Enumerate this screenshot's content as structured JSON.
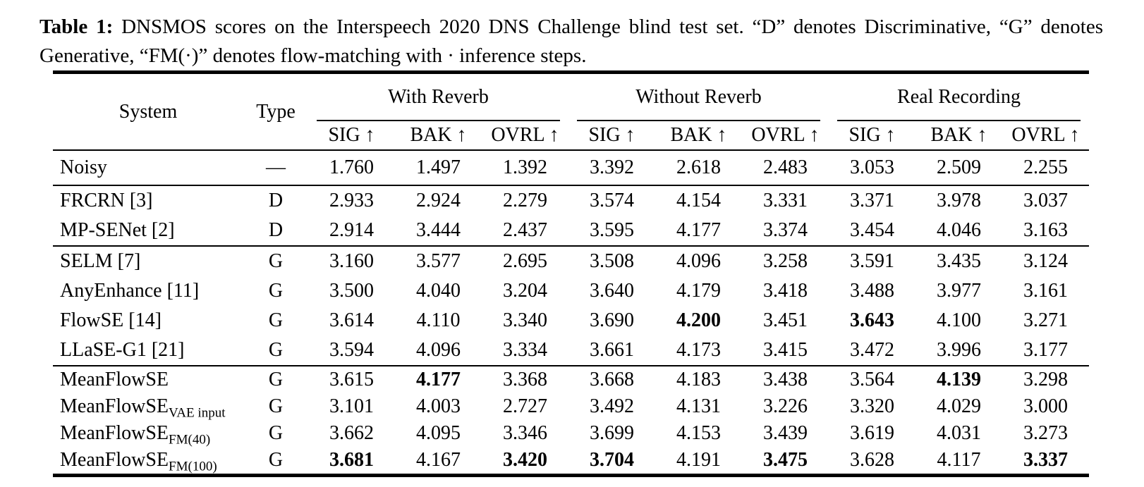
{
  "caption": {
    "label": "Table 1:",
    "text": " DNSMOS scores on the Interspeech 2020 DNS Challenge blind test set. “D” denotes Discriminative, “G” denotes Generative, “FM(·)” denotes flow-matching with · inference steps."
  },
  "table": {
    "system_header": "System",
    "type_header": "Type",
    "groups": [
      {
        "label": "With Reverb"
      },
      {
        "label": "Without Reverb"
      },
      {
        "label": "Real Recording"
      }
    ],
    "metrics": [
      "SIG ↑",
      "BAK ↑",
      "OVRL ↑"
    ],
    "sections": [
      {
        "rows": [
          {
            "system": "Noisy",
            "subscript": "",
            "type": "—",
            "values": [
              "1.760",
              "1.497",
              "1.392",
              "3.392",
              "2.618",
              "2.483",
              "3.053",
              "2.509",
              "2.255"
            ],
            "bold": []
          }
        ]
      },
      {
        "rows": [
          {
            "system": "FRCRN [3]",
            "subscript": "",
            "type": "D",
            "values": [
              "2.933",
              "2.924",
              "2.279",
              "3.574",
              "4.154",
              "3.331",
              "3.371",
              "3.978",
              "3.037"
            ],
            "bold": []
          },
          {
            "system": "MP-SENet [2]",
            "subscript": "",
            "type": "D",
            "values": [
              "2.914",
              "3.444",
              "2.437",
              "3.595",
              "4.177",
              "3.374",
              "3.454",
              "4.046",
              "3.163"
            ],
            "bold": []
          }
        ]
      },
      {
        "rows": [
          {
            "system": "SELM [7]",
            "subscript": "",
            "type": "G",
            "values": [
              "3.160",
              "3.577",
              "2.695",
              "3.508",
              "4.096",
              "3.258",
              "3.591",
              "3.435",
              "3.124"
            ],
            "bold": []
          },
          {
            "system": "AnyEnhance [11]",
            "subscript": "",
            "type": "G",
            "values": [
              "3.500",
              "4.040",
              "3.204",
              "3.640",
              "4.179",
              "3.418",
              "3.488",
              "3.977",
              "3.161"
            ],
            "bold": []
          },
          {
            "system": "FlowSE [14]",
            "subscript": "",
            "type": "G",
            "values": [
              "3.614",
              "4.110",
              "3.340",
              "3.690",
              "4.200",
              "3.451",
              "3.643",
              "4.100",
              "3.271"
            ],
            "bold": [
              4,
              6
            ]
          },
          {
            "system": "LLaSE-G1 [21]",
            "subscript": "",
            "type": "G",
            "values": [
              "3.594",
              "4.096",
              "3.334",
              "3.661",
              "4.173",
              "3.415",
              "3.472",
              "3.996",
              "3.177"
            ],
            "bold": []
          }
        ]
      },
      {
        "rows": [
          {
            "system": "MeanFlowSE",
            "subscript": "",
            "type": "G",
            "values": [
              "3.615",
              "4.177",
              "3.368",
              "3.668",
              "4.183",
              "3.438",
              "3.564",
              "4.139",
              "3.298"
            ],
            "bold": [
              1,
              7
            ]
          },
          {
            "system": "MeanFlowSE",
            "subscript": "VAE input",
            "type": "G",
            "values": [
              "3.101",
              "4.003",
              "2.727",
              "3.492",
              "4.131",
              "3.226",
              "3.320",
              "4.029",
              "3.000"
            ],
            "bold": []
          },
          {
            "system": "MeanFlowSE",
            "subscript": "FM(40)",
            "type": "G",
            "values": [
              "3.662",
              "4.095",
              "3.346",
              "3.699",
              "4.153",
              "3.439",
              "3.619",
              "4.031",
              "3.273"
            ],
            "bold": []
          },
          {
            "system": "MeanFlowSE",
            "subscript": "FM(100)",
            "type": "G",
            "values": [
              "3.681",
              "4.167",
              "3.420",
              "3.704",
              "4.191",
              "3.475",
              "3.628",
              "4.117",
              "3.337"
            ],
            "bold": [
              0,
              2,
              3,
              5,
              8
            ]
          }
        ]
      }
    ]
  }
}
